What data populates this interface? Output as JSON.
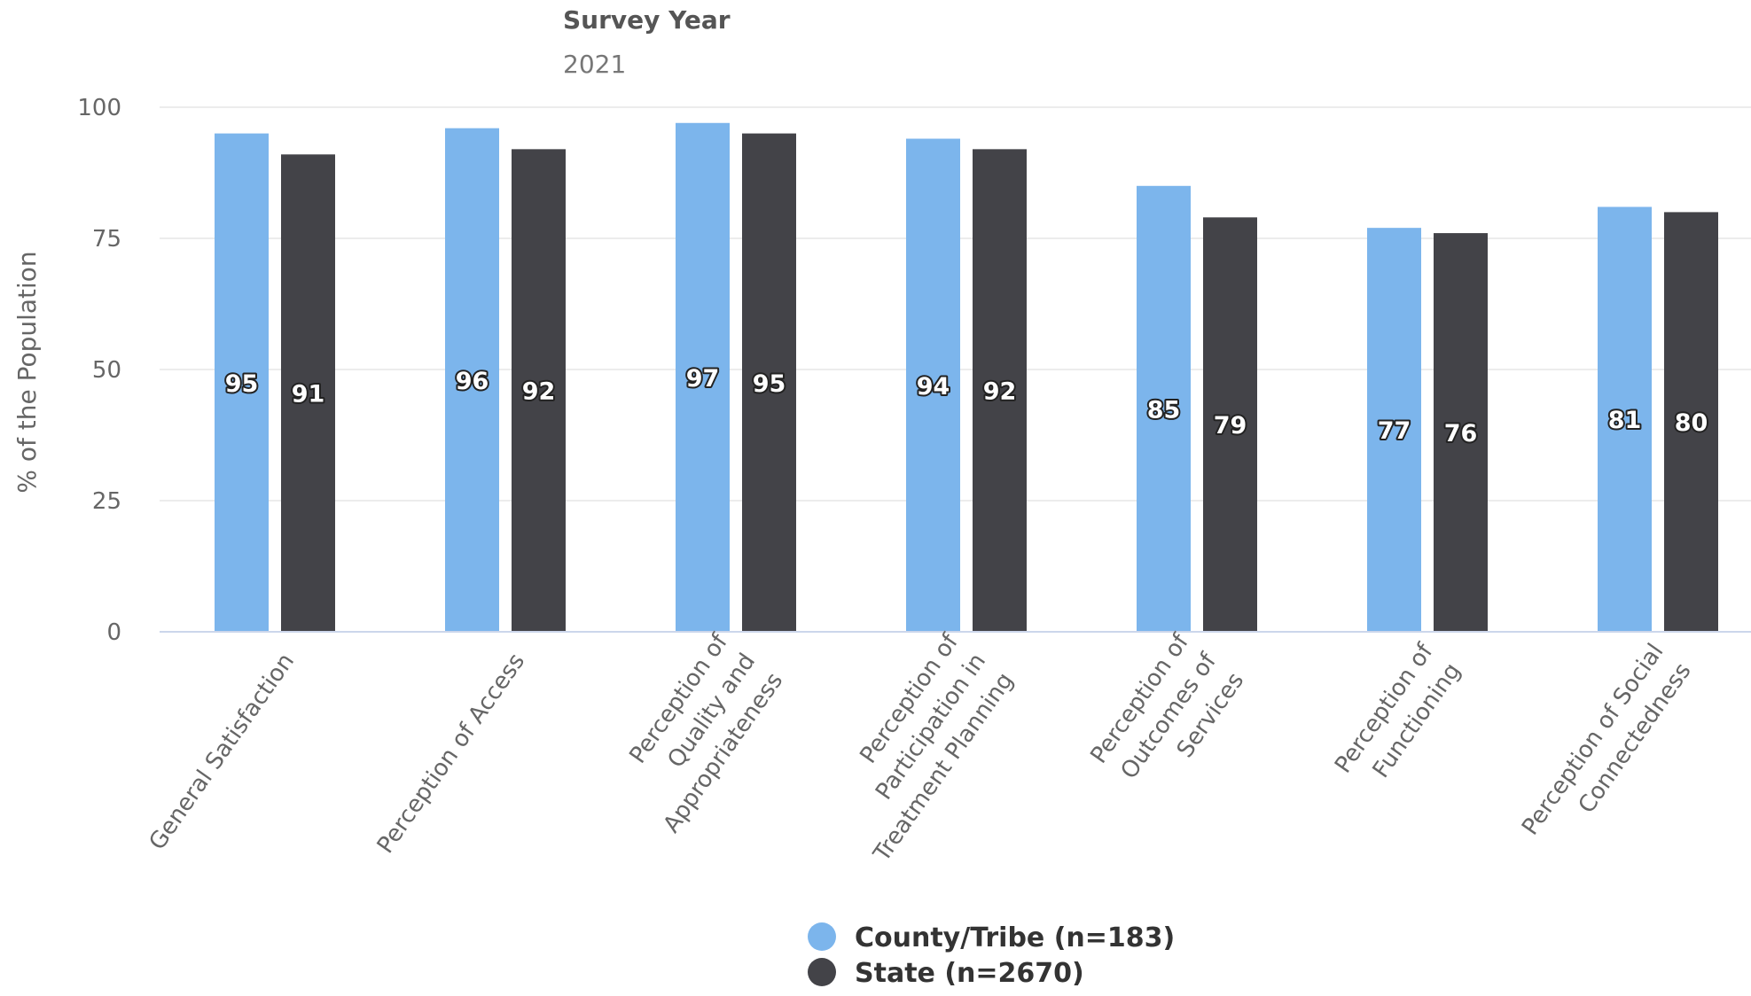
{
  "header": {
    "title": "Survey Year",
    "year": "2021"
  },
  "chart_data": {
    "type": "bar",
    "title": "",
    "xlabel": "",
    "ylabel": "% of the Population",
    "ylim": [
      0,
      100
    ],
    "yticks": [
      "0",
      "25",
      "50",
      "75",
      "100"
    ],
    "grid": true,
    "legend_position": "bottom-center",
    "categories": [
      "General Satisfaction",
      "Perception of Access",
      "Perception of Quality and Appropriateness",
      "Perception of Participation in Treatment Planning",
      "Perception of Outcomes of Services",
      "Perception of Functioning",
      "Perception of Social Connectedness"
    ],
    "category_lines": [
      [
        "General Satisfaction"
      ],
      [
        "Perception of Access"
      ],
      [
        "Perception of",
        "Quality and",
        "Appropriateness"
      ],
      [
        "Perception of",
        "Participation in",
        "Treatment Planning"
      ],
      [
        "Perception of",
        "Outcomes of",
        "Services"
      ],
      [
        "Perception of",
        "Functioning"
      ],
      [
        "Perception of Social",
        "Connectedness"
      ]
    ],
    "series": [
      {
        "name": "County/Tribe (n=183)",
        "color": "#7cb5ec",
        "values": [
          95,
          96,
          97,
          94,
          85,
          77,
          81
        ]
      },
      {
        "name": "State (n=2670)",
        "color": "#434348",
        "values": [
          91,
          92,
          95,
          92,
          79,
          76,
          80
        ]
      }
    ]
  }
}
